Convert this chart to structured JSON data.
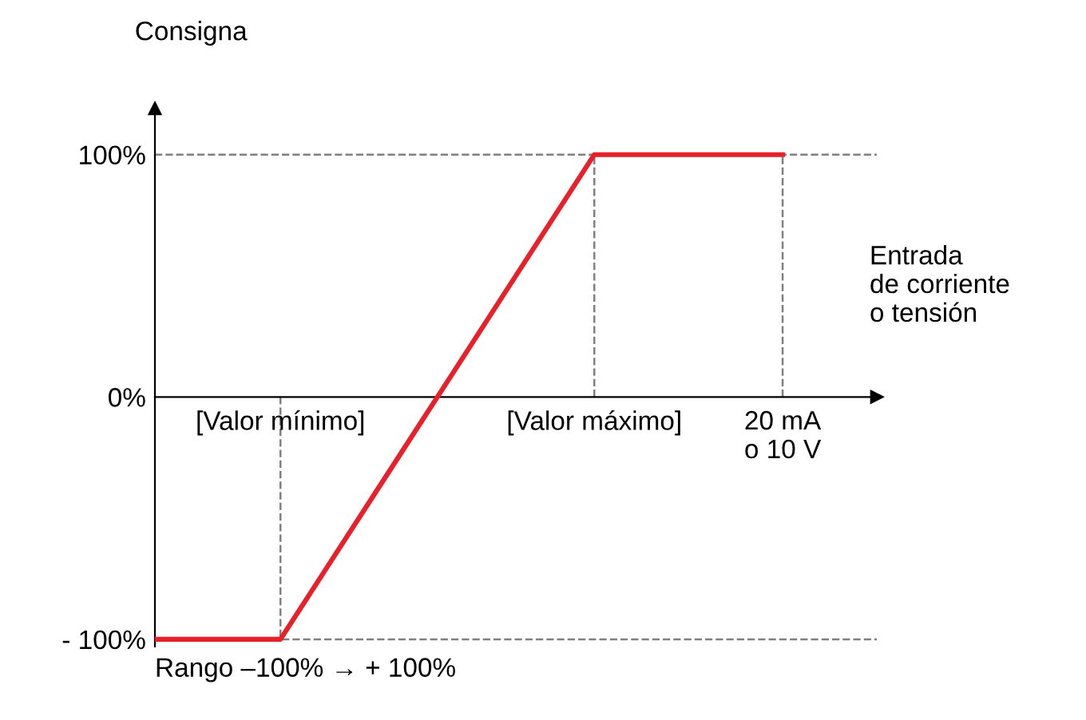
{
  "chart_data": {
    "type": "line",
    "ylabel": "Consigna",
    "xlabel": "Entrada\nde corriente\no tensión",
    "categories": [
      null,
      null,
      null,
      null,
      "[Valor mínimo]",
      null,
      null,
      null,
      null,
      null,
      null,
      null,
      null,
      null,
      "[Valor máximo]",
      null,
      null,
      null,
      null,
      null,
      "20 mA\no 10 V"
    ],
    "series": [
      {
        "color": "#e8202a",
        "values": [
          -100,
          -100,
          -100,
          -100,
          -100,
          -80,
          -60,
          -40,
          -20,
          0,
          20,
          40,
          60,
          80,
          100,
          100,
          100,
          100,
          100,
          100,
          100
        ]
      }
    ],
    "ylim": [
      -103,
      119
    ],
    "yticks": [
      {
        "value": -100,
        "label": "- 100%"
      },
      {
        "value": 0,
        "label": "0%"
      },
      {
        "value": 100,
        "label": "100%"
      }
    ],
    "ref_lines": [
      {
        "axis": "y",
        "value": 100,
        "color": "#808080",
        "line_style": "dashed"
      },
      {
        "axis": "y",
        "value": -100,
        "color": "#808080",
        "line_style": "dashed"
      },
      {
        "axis": "x",
        "value": "[Valor mínimo]",
        "color": "#808080",
        "line_style": "dashed"
      },
      {
        "axis": "x",
        "value": "[Valor máximo]",
        "color": "#808080",
        "line_style": "dashed"
      },
      {
        "axis": "x",
        "value": "20 mA\no 10 V",
        "color": "#808080",
        "line_style": "dashed"
      }
    ],
    "annotations": [
      "Rango –100% → + 100%"
    ],
    "grid": false,
    "marker": "none",
    "line_style": "solid"
  }
}
